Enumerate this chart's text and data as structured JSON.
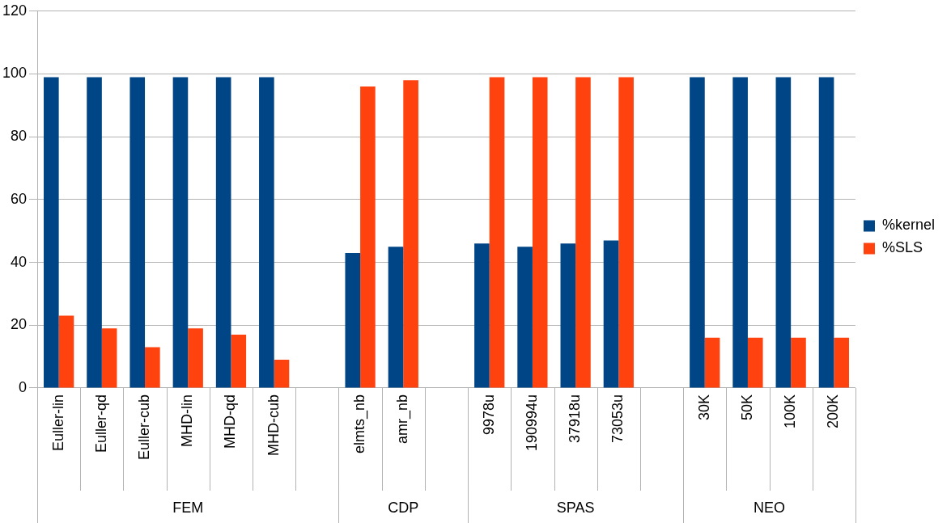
{
  "chart_data": {
    "type": "bar",
    "categories": [
      "Euller-lin",
      "Euller-qd",
      "Euller-cub",
      "MHD-lin",
      "MHD-qd",
      "MHD-cub",
      null,
      "elmts_nb",
      "amr_nb",
      null,
      "9978u",
      "190994u",
      "37918u",
      "73053u",
      null,
      "30K",
      "50K",
      "100K",
      "200K"
    ],
    "series": [
      {
        "name": "%kernel",
        "color": "#004586",
        "values": [
          99,
          99,
          99,
          99,
          99,
          99,
          null,
          43,
          45,
          null,
          46,
          45,
          46,
          47,
          null,
          99,
          99,
          99,
          99
        ]
      },
      {
        "name": "%SLS",
        "color": "#ff420e",
        "values": [
          23,
          19,
          13,
          19,
          17,
          9,
          null,
          96,
          98,
          null,
          99,
          99,
          99,
          99,
          null,
          16,
          16,
          16,
          16
        ]
      }
    ],
    "annotations": [
      "FEM",
      "CDP",
      "SPAS",
      "NEO"
    ],
    "ylim": [
      0,
      120
    ],
    "yticks": [
      0,
      20,
      40,
      60,
      80,
      100,
      120
    ],
    "grid": "y",
    "legend": "right"
  }
}
